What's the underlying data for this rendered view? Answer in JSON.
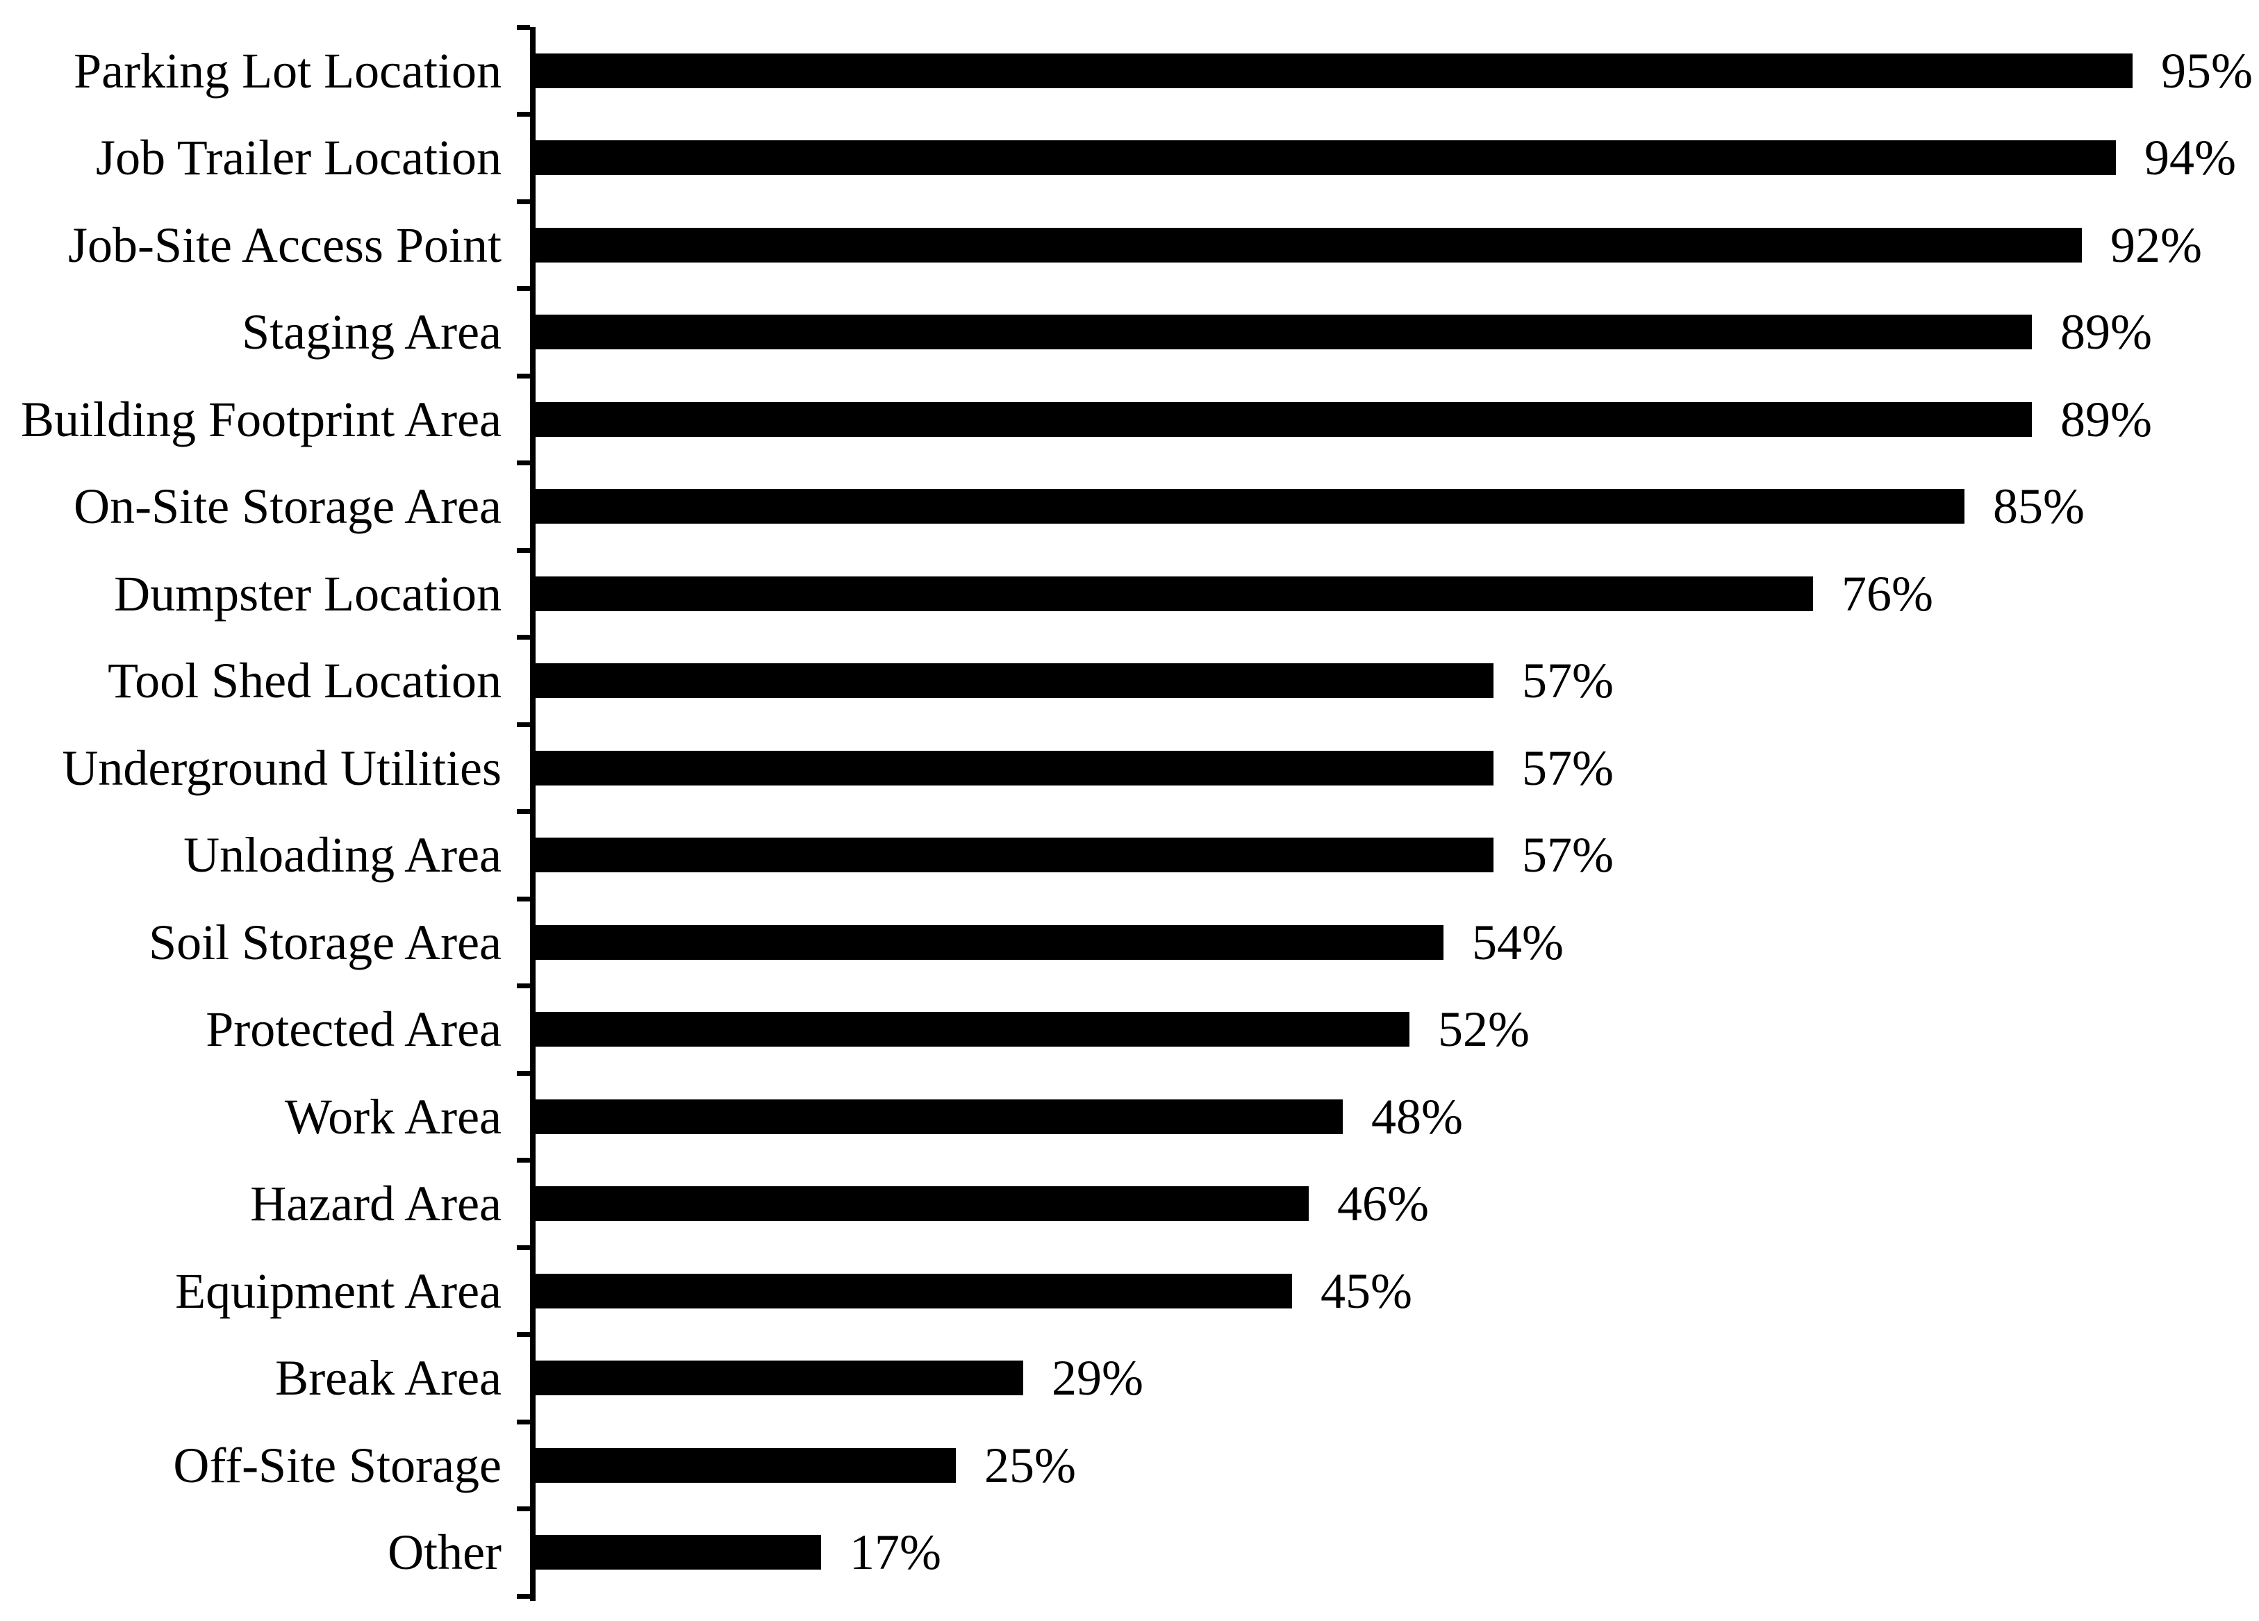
{
  "chart_data": {
    "type": "bar",
    "orientation": "horizontal",
    "title": "",
    "xlabel": "",
    "ylabel": "",
    "xlim": [
      0,
      100
    ],
    "grid": false,
    "legend": false,
    "bar_color": "#000000",
    "text_color": "#000000",
    "background_color": "#ffffff",
    "value_suffix": "%",
    "categories": [
      "Parking Lot Location",
      "Job Trailer Location",
      "Job-Site Access Point",
      "Staging Area",
      "Building Footprint Area",
      "On-Site Storage Area",
      "Dumpster Location",
      "Tool Shed Location",
      "Underground Utilities",
      "Unloading Area",
      "Soil Storage Area",
      "Protected Area",
      "Work Area",
      "Hazard Area",
      "Equipment Area",
      "Break Area",
      "Off-Site Storage",
      "Other"
    ],
    "values": [
      95,
      94,
      92,
      89,
      89,
      85,
      76,
      57,
      57,
      57,
      54,
      52,
      48,
      46,
      45,
      29,
      25,
      17
    ],
    "value_labels": [
      "95%",
      "94%",
      "92%",
      "89%",
      "89%",
      "85%",
      "76%",
      "57%",
      "57%",
      "57%",
      "54%",
      "52%",
      "48%",
      "46%",
      "45%",
      "29%",
      "25%",
      "17%"
    ]
  }
}
